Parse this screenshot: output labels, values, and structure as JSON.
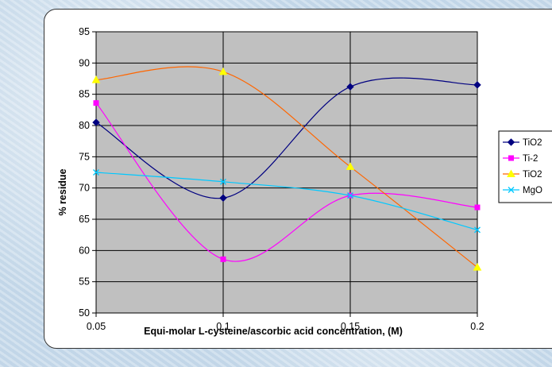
{
  "chart_data": {
    "type": "line",
    "xlabel": "Equi-molar L-cysteine/ascorbic acid concentration, (M)",
    "ylabel": "% residue",
    "x": [
      0.05,
      0.1,
      0.15,
      0.2
    ],
    "x_tick_labels": [
      "0.05",
      "0.1",
      "0.15",
      "0.2"
    ],
    "y_ticks": [
      50,
      55,
      60,
      65,
      70,
      75,
      80,
      85,
      90,
      95
    ],
    "ylim": [
      50,
      95
    ],
    "grid": "vertical and horizontal",
    "plot_background": "#c0c0c0",
    "legend_position": "right",
    "series": [
      {
        "name": "TiO2",
        "color": "#000080",
        "marker": "diamond",
        "values": [
          80.5,
          68.4,
          86.2,
          86.5
        ]
      },
      {
        "name": "Ti-2",
        "color": "#ff00ff",
        "marker": "square",
        "values": [
          83.6,
          58.6,
          68.8,
          66.9
        ]
      },
      {
        "name": "TiO2",
        "color": "#ff6600",
        "marker": "triangle",
        "values": [
          87.3,
          88.6,
          73.4,
          57.3
        ]
      },
      {
        "name": "MgO",
        "color": "#00c8ff",
        "marker": "x",
        "values": [
          72.5,
          71.0,
          68.8,
          63.3
        ]
      }
    ]
  }
}
